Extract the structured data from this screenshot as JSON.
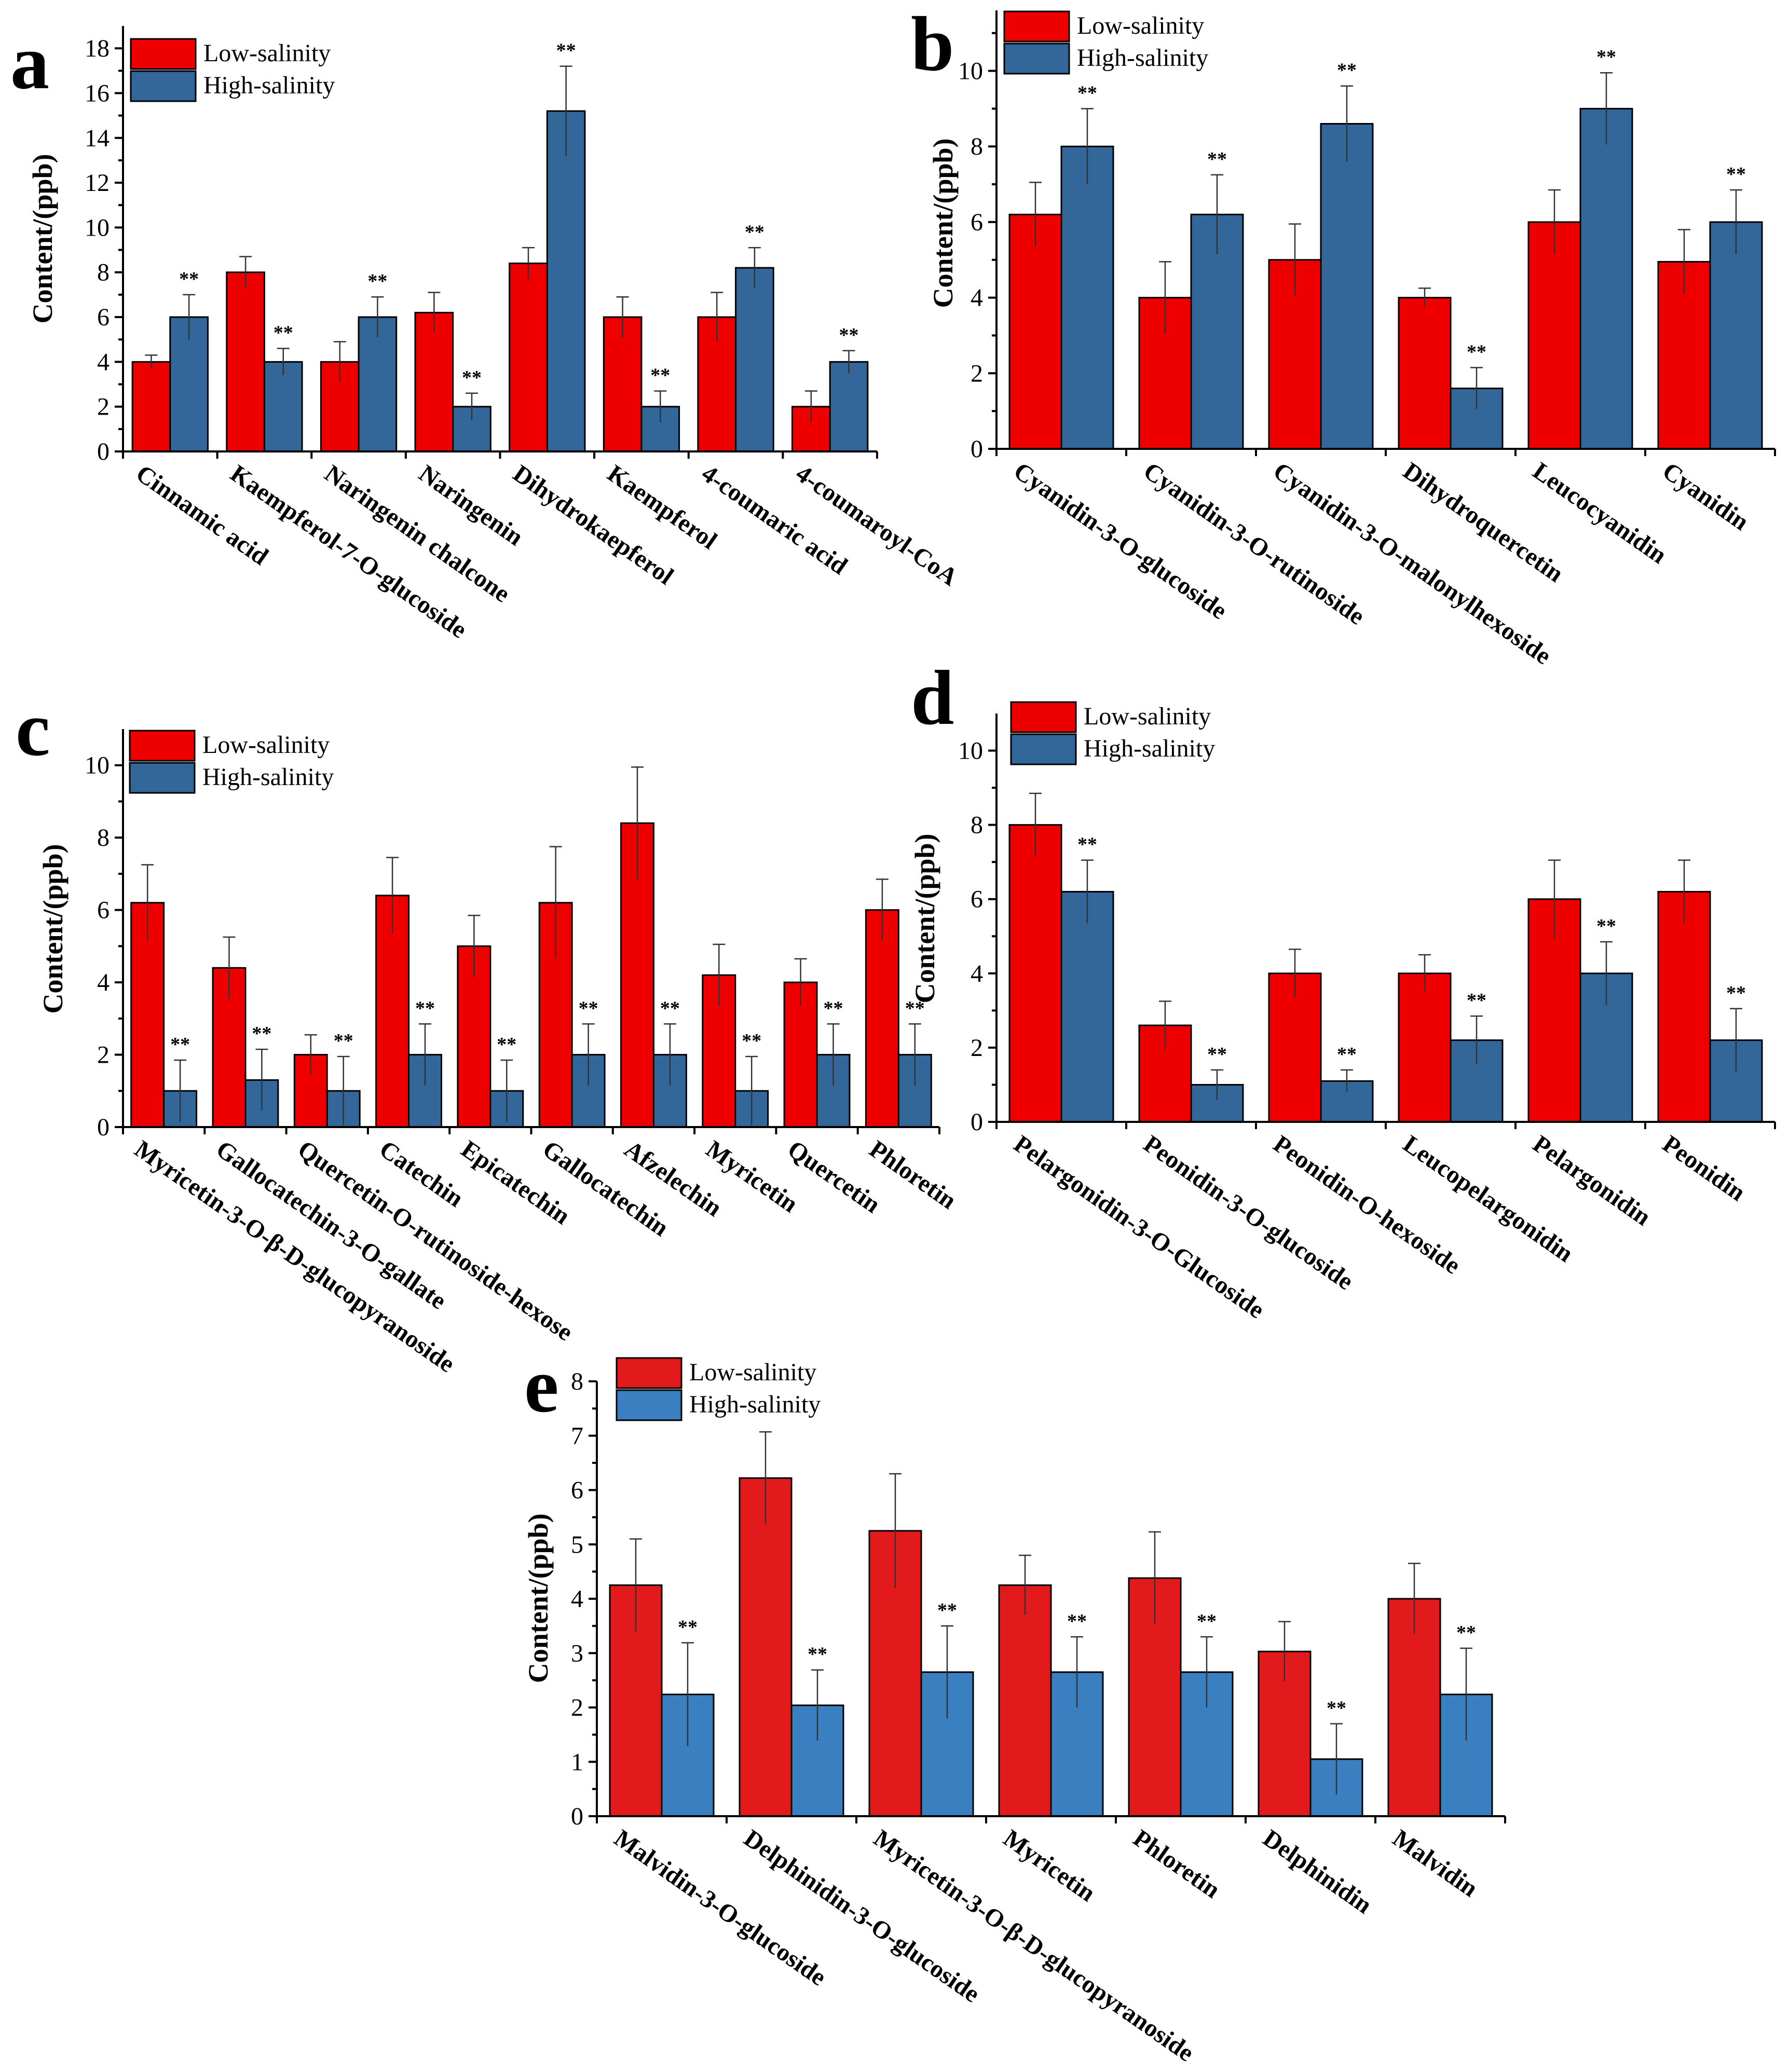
{
  "chart_data": [
    {
      "panel": "a",
      "type": "bar",
      "ylabel": "Content/(ppb)",
      "xlabel": "",
      "ylim": [
        0,
        19
      ],
      "yticks": [
        0,
        2,
        4,
        6,
        8,
        10,
        12,
        14,
        16,
        18
      ],
      "categories": [
        "Cinnamic acid",
        "Kaempferol-7-O-glucoside",
        "Naringenin chalcone",
        "Naringenin",
        "Dihydrokaepferol",
        "Kaempferol",
        "4-coumaric acid",
        "4-coumaroyl-CoA"
      ],
      "series": [
        {
          "name": "Low-salinity",
          "color": "#ee0000",
          "values": [
            4.0,
            8.0,
            4.0,
            6.2,
            8.4,
            6.0,
            6.0,
            2.0
          ],
          "errors": [
            0.3,
            0.7,
            0.9,
            0.9,
            0.7,
            0.9,
            1.1,
            0.7
          ]
        },
        {
          "name": "High-salinity",
          "color": "#336699",
          "values": [
            6.0,
            4.0,
            6.0,
            2.0,
            15.2,
            2.0,
            8.2,
            4.0
          ],
          "errors": [
            1.0,
            0.6,
            0.9,
            0.6,
            2.0,
            0.7,
            0.9,
            0.5
          ]
        }
      ],
      "significance": [
        "**",
        "**",
        "**",
        "**",
        "**",
        "**",
        "**",
        "**"
      ]
    },
    {
      "panel": "b",
      "type": "bar",
      "ylabel": "Content/(ppb)",
      "xlabel": "",
      "ylim": [
        0,
        11.6
      ],
      "yticks": [
        0,
        2,
        4,
        6,
        8,
        10
      ],
      "categories": [
        "Cyanidin-3-O-glucoside",
        "Cyanidin-3-O-rutinoside",
        "Cyanidin-3-O-malonylhexoside",
        "Dihydroquercetin",
        "Leucocyanidin",
        "Cyanidin"
      ],
      "series": [
        {
          "name": "Low-salinity",
          "color": "#ee0000",
          "values": [
            6.2,
            4.0,
            5.0,
            4.0,
            6.0,
            4.95
          ],
          "errors": [
            0.85,
            0.95,
            0.95,
            0.25,
            0.85,
            0.85
          ]
        },
        {
          "name": "High-salinity",
          "color": "#336699",
          "values": [
            8.0,
            6.2,
            8.6,
            1.6,
            9.0,
            6.0
          ],
          "errors": [
            1.0,
            1.05,
            1.0,
            0.55,
            0.95,
            0.85
          ]
        }
      ],
      "significance": [
        "**",
        "**",
        "**",
        "**",
        "**",
        "**"
      ]
    },
    {
      "panel": "c",
      "type": "bar",
      "ylabel": "Content/(ppb)",
      "xlabel": "",
      "ylim": [
        0,
        11
      ],
      "yticks": [
        0,
        2,
        4,
        6,
        8,
        10
      ],
      "categories": [
        "Myricetin-3-O-β-D-glucopyranoside",
        "Gallocatechin-3-O-gallate",
        "Quercetin-O-rutinoside-hexose",
        "Catechin",
        "Epicatechin",
        "Gallocatechin",
        "Afzelechin",
        "Myricetin",
        "Quercetin",
        "Phloretin"
      ],
      "series": [
        {
          "name": "Low-salinity",
          "color": "#ee0000",
          "values": [
            6.2,
            4.4,
            2.0,
            6.4,
            5.0,
            6.2,
            8.4,
            4.2,
            4.0,
            6.0
          ],
          "errors": [
            1.05,
            0.85,
            0.55,
            1.05,
            0.85,
            1.55,
            1.55,
            0.85,
            0.65,
            0.85
          ]
        },
        {
          "name": "High-salinity",
          "color": "#336699",
          "values": [
            1.0,
            1.3,
            1.0,
            2.0,
            1.0,
            2.0,
            2.0,
            1.0,
            2.0,
            2.0
          ],
          "errors": [
            0.85,
            0.85,
            0.95,
            0.85,
            0.85,
            0.85,
            0.85,
            0.95,
            0.85,
            0.85
          ]
        }
      ],
      "significance": [
        "**",
        "**",
        "**",
        "**",
        "**",
        "**",
        "**",
        "**",
        "**",
        "**"
      ]
    },
    {
      "panel": "d",
      "type": "bar",
      "ylabel": "Content/(ppb)",
      "xlabel": "",
      "ylim": [
        0,
        11
      ],
      "yticks": [
        0,
        2,
        4,
        6,
        8,
        10
      ],
      "categories": [
        "Pelargonidin-3-O-Glucoside",
        "Peonidin-3-O-glucoside",
        "Peonidin-O-hexoside",
        "Leucopelargonidin",
        "Pelargonidin",
        "Peonidin"
      ],
      "series": [
        {
          "name": "Low-salinity",
          "color": "#ee0000",
          "values": [
            8.0,
            2.6,
            4.0,
            4.0,
            6.0,
            6.2
          ],
          "errors": [
            0.85,
            0.65,
            0.65,
            0.5,
            1.05,
            0.85
          ]
        },
        {
          "name": "High-salinity",
          "color": "#336699",
          "values": [
            6.2,
            1.0,
            1.1,
            2.2,
            4.0,
            2.2
          ],
          "errors": [
            0.85,
            0.4,
            0.3,
            0.65,
            0.85,
            0.85
          ]
        }
      ],
      "significance": [
        "**",
        "**",
        "**",
        "**",
        "**",
        "**"
      ]
    },
    {
      "panel": "e",
      "type": "bar",
      "ylabel": "Content/(ppb)",
      "xlabel": "",
      "ylim": [
        0,
        8
      ],
      "yticks": [
        0,
        1,
        2,
        3,
        4,
        5,
        6,
        7,
        8
      ],
      "categories": [
        "Malvidin-3-O-glucoside",
        "Delphinidin-3-O-glucoside",
        "Myricetin-3-O-β-D-glucopyranoside",
        "Myricetin",
        "Phloretin",
        "Delphinidin",
        "Malvidin"
      ],
      "series": [
        {
          "name": "Low-salinity",
          "color": "#e31a1c",
          "values": [
            4.25,
            6.22,
            5.25,
            4.25,
            4.38,
            3.03,
            4.0
          ],
          "errors": [
            0.85,
            0.85,
            1.05,
            0.55,
            0.85,
            0.55,
            0.65
          ]
        },
        {
          "name": "High-salinity",
          "color": "#3a80c0",
          "values": [
            2.24,
            2.04,
            2.65,
            2.65,
            2.65,
            1.05,
            2.24
          ],
          "errors": [
            0.95,
            0.65,
            0.85,
            0.65,
            0.65,
            0.65,
            0.85
          ]
        }
      ],
      "significance": [
        "**",
        "**",
        "**",
        "**",
        "**",
        "**",
        "**"
      ]
    }
  ]
}
